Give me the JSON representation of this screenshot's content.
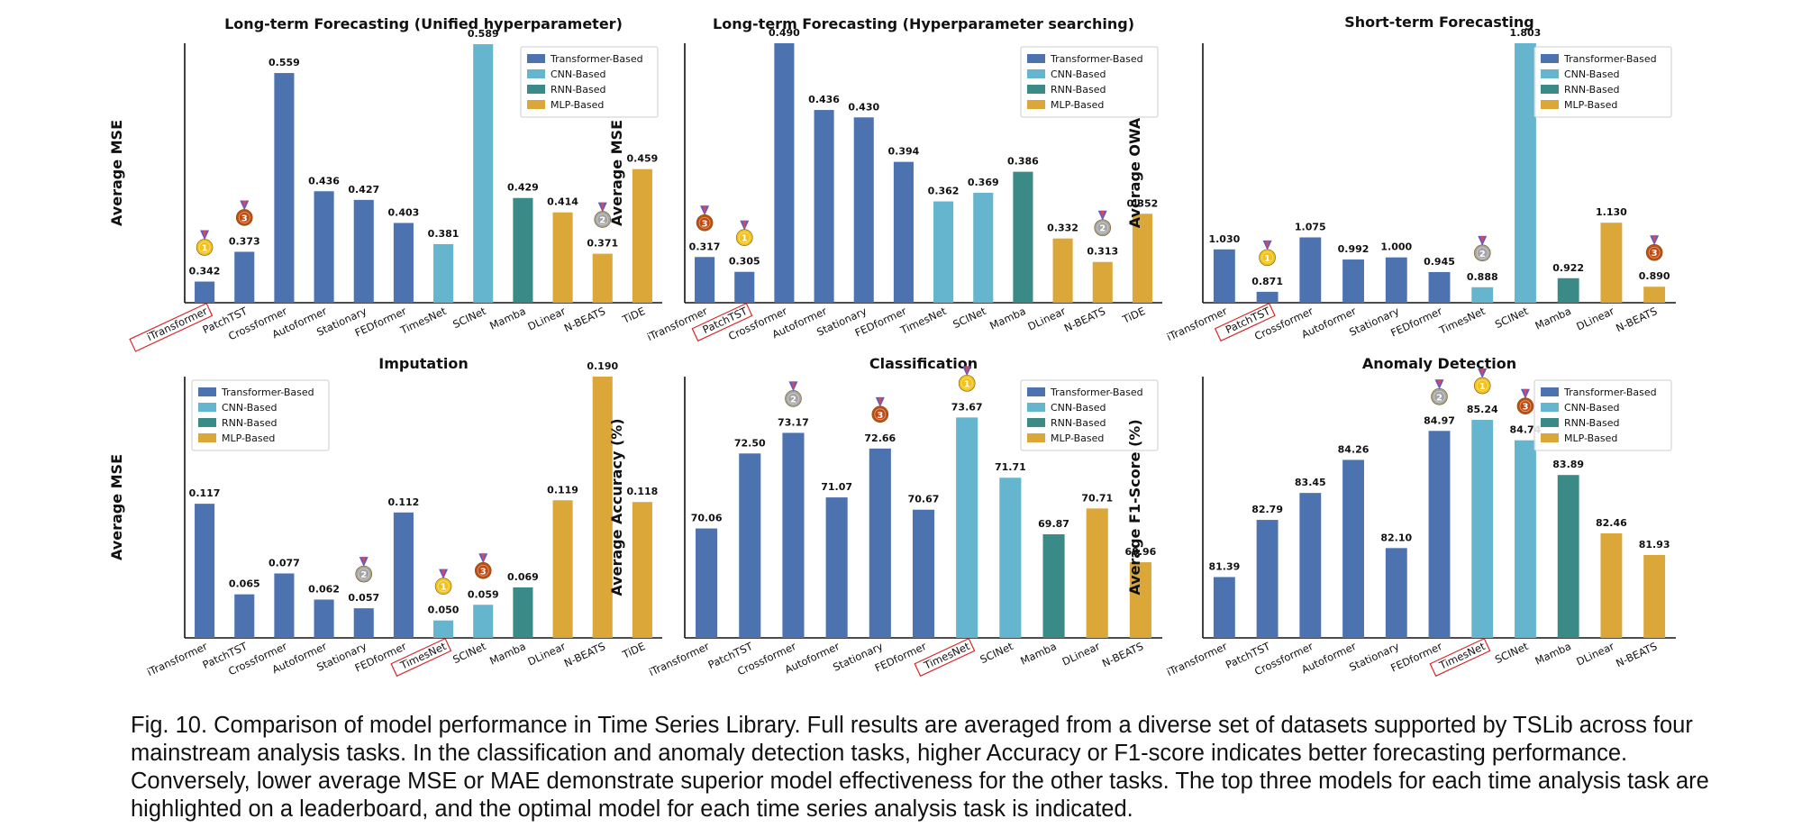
{
  "caption": "Fig. 10. Comparison of model performance in Time Series Library. Full results are averaged from a diverse set of datasets supported by TSLib across four mainstream analysis tasks. In the classification and anomaly detection tasks, higher Accuracy or F1-score indicates better forecasting performance. Conversely, lower average MSE or MAE demonstrate superior model effectiveness for the other tasks. The top three models for each time analysis task are highlighted on a leaderboard, and the optimal model for each time series analysis task is indicated.",
  "colors": {
    "Transformer-Based": "#4c72b0",
    "CNN-Based": "#64b5cd",
    "RNN-Based": "#3a8b88",
    "MLP-Based": "#daa738",
    "gold": "#f3c21a",
    "silver": "#a4a4a4",
    "bronze": "#c04b12",
    "highlight_box": "#d62728"
  },
  "chart_data": [
    {
      "type": "bar",
      "title": "Long-term Forecasting (Unified hyperparameter)",
      "ylabel": "Average MSE",
      "ylim": [
        0.32,
        0.59
      ],
      "legend_position": "top-right",
      "legend": [
        "Transformer-Based",
        "CNN-Based",
        "RNN-Based",
        "MLP-Based"
      ],
      "categories": [
        "iTransformer",
        "PatchTST",
        "Crossformer",
        "Autoformer",
        "Stationary",
        "FEDformer",
        "TimesNet",
        "SCINet",
        "Mamba",
        "DLinear",
        "N-BEATS",
        "TiDE"
      ],
      "values": [
        0.342,
        0.373,
        0.559,
        0.436,
        0.427,
        0.403,
        0.381,
        0.589,
        0.429,
        0.414,
        0.371,
        0.459
      ],
      "value_labels": [
        "0.342",
        "0.373",
        "0.559",
        "0.436",
        "0.427",
        "0.403",
        "0.381",
        "0.589",
        "0.429",
        "0.414",
        "0.371",
        "0.459"
      ],
      "groups": [
        "Transformer-Based",
        "Transformer-Based",
        "Transformer-Based",
        "Transformer-Based",
        "Transformer-Based",
        "Transformer-Based",
        "CNN-Based",
        "CNN-Based",
        "RNN-Based",
        "MLP-Based",
        "MLP-Based",
        "MLP-Based"
      ],
      "medals": [
        {
          "index": 0,
          "rank": "1"
        },
        {
          "index": 10,
          "rank": "2"
        },
        {
          "index": 1,
          "rank": "3"
        }
      ],
      "highlighted": "iTransformer"
    },
    {
      "type": "bar",
      "title": "Long-term Forecasting (Hyperparameter searching)",
      "ylabel": "Average MSE",
      "ylim": [
        0.28,
        0.49
      ],
      "legend_position": "top-right",
      "legend": [
        "Transformer-Based",
        "CNN-Based",
        "RNN-Based",
        "MLP-Based"
      ],
      "categories": [
        "iTransformer",
        "PatchTST",
        "Crossformer",
        "Autoformer",
        "Stationary",
        "FEDformer",
        "TimesNet",
        "SCINet",
        "Mamba",
        "DLinear",
        "N-BEATS",
        "TiDE"
      ],
      "values": [
        0.317,
        0.305,
        0.49,
        0.436,
        0.43,
        0.394,
        0.362,
        0.369,
        0.386,
        0.332,
        0.313,
        0.352
      ],
      "value_labels": [
        "0.317",
        "0.305",
        "0.490",
        "0.436",
        "0.430",
        "0.394",
        "0.362",
        "0.369",
        "0.386",
        "0.332",
        "0.313",
        "0.352"
      ],
      "groups": [
        "Transformer-Based",
        "Transformer-Based",
        "Transformer-Based",
        "Transformer-Based",
        "Transformer-Based",
        "Transformer-Based",
        "CNN-Based",
        "CNN-Based",
        "RNN-Based",
        "MLP-Based",
        "MLP-Based",
        "MLP-Based"
      ],
      "medals": [
        {
          "index": 1,
          "rank": "1"
        },
        {
          "index": 10,
          "rank": "2"
        },
        {
          "index": 0,
          "rank": "3"
        }
      ],
      "highlighted": "PatchTST"
    },
    {
      "type": "bar",
      "title": "Short-term Forecasting",
      "ylabel": "Average OWA",
      "ylim": [
        0.83,
        1.803
      ],
      "legend_position": "top-right",
      "legend": [
        "Transformer-Based",
        "CNN-Based",
        "RNN-Based",
        "MLP-Based"
      ],
      "categories": [
        "iTransformer",
        "PatchTST",
        "Crossformer",
        "Autoformer",
        "Stationary",
        "FEDformer",
        "TimesNet",
        "SCINet",
        "Mamba",
        "DLinear",
        "N-BEATS"
      ],
      "values": [
        1.03,
        0.871,
        1.075,
        0.992,
        1.0,
        0.945,
        0.888,
        1.803,
        0.922,
        1.13,
        0.89
      ],
      "value_labels": [
        "1.030",
        "0.871",
        "1.075",
        "0.992",
        "1.000",
        "0.945",
        "0.888",
        "1.803",
        "0.922",
        "1.130",
        "0.890"
      ],
      "groups": [
        "Transformer-Based",
        "Transformer-Based",
        "Transformer-Based",
        "Transformer-Based",
        "Transformer-Based",
        "Transformer-Based",
        "CNN-Based",
        "CNN-Based",
        "RNN-Based",
        "MLP-Based",
        "MLP-Based"
      ],
      "medals": [
        {
          "index": 1,
          "rank": "1"
        },
        {
          "index": 6,
          "rank": "2"
        },
        {
          "index": 10,
          "rank": "3"
        }
      ],
      "highlighted": "PatchTST"
    },
    {
      "type": "bar",
      "title": "Imputation",
      "ylabel": "Average MSE",
      "ylim": [
        0.04,
        0.19
      ],
      "legend_position": "top-left",
      "legend": [
        "Transformer-Based",
        "CNN-Based",
        "RNN-Based",
        "MLP-Based"
      ],
      "categories": [
        "iTransformer",
        "PatchTST",
        "Crossformer",
        "Autoformer",
        "Stationary",
        "FEDformer",
        "TimesNet",
        "SCINet",
        "Mamba",
        "DLinear",
        "N-BEATS",
        "TiDE"
      ],
      "values": [
        0.117,
        0.065,
        0.077,
        0.062,
        0.057,
        0.112,
        0.05,
        0.059,
        0.069,
        0.119,
        0.19,
        0.118
      ],
      "value_labels": [
        "0.117",
        "0.065",
        "0.077",
        "0.062",
        "0.057",
        "0.112",
        "0.050",
        "0.059",
        "0.069",
        "0.119",
        "0.190",
        "0.118"
      ],
      "groups": [
        "Transformer-Based",
        "Transformer-Based",
        "Transformer-Based",
        "Transformer-Based",
        "Transformer-Based",
        "Transformer-Based",
        "CNN-Based",
        "CNN-Based",
        "RNN-Based",
        "MLP-Based",
        "MLP-Based",
        "MLP-Based"
      ],
      "medals": [
        {
          "index": 6,
          "rank": "1"
        },
        {
          "index": 4,
          "rank": "2"
        },
        {
          "index": 7,
          "rank": "3"
        }
      ],
      "highlighted": "TimesNet"
    },
    {
      "type": "bar",
      "title": "Classification",
      "ylabel": "Average Accuracy (%)",
      "ylim": [
        66.5,
        75.0
      ],
      "legend_position": "top-right",
      "legend": [
        "Transformer-Based",
        "CNN-Based",
        "RNN-Based",
        "MLP-Based"
      ],
      "categories": [
        "iTransformer",
        "PatchTST",
        "Crossformer",
        "Autoformer",
        "Stationary",
        "FEDformer",
        "TimesNet",
        "SCINet",
        "Mamba",
        "DLinear",
        "N-BEATS"
      ],
      "values": [
        70.06,
        72.5,
        73.17,
        71.07,
        72.66,
        70.67,
        73.67,
        71.71,
        69.87,
        70.71,
        68.96
      ],
      "value_labels": [
        "70.06",
        "72.50",
        "73.17",
        "71.07",
        "72.66",
        "70.67",
        "73.67",
        "71.71",
        "69.87",
        "70.71",
        "68.96"
      ],
      "groups": [
        "Transformer-Based",
        "Transformer-Based",
        "Transformer-Based",
        "Transformer-Based",
        "Transformer-Based",
        "Transformer-Based",
        "CNN-Based",
        "CNN-Based",
        "RNN-Based",
        "MLP-Based",
        "MLP-Based"
      ],
      "medals": [
        {
          "index": 6,
          "rank": "1"
        },
        {
          "index": 2,
          "rank": "2"
        },
        {
          "index": 4,
          "rank": "3"
        }
      ],
      "highlighted": "TimesNet"
    },
    {
      "type": "bar",
      "title": "Anomaly Detection",
      "ylabel": "Average F1-Score (%)",
      "ylim": [
        79.9,
        86.3
      ],
      "legend_position": "top-right",
      "legend": [
        "Transformer-Based",
        "CNN-Based",
        "RNN-Based",
        "MLP-Based"
      ],
      "categories": [
        "iTransformer",
        "PatchTST",
        "Crossformer",
        "Autoformer",
        "Stationary",
        "FEDformer",
        "TimesNet",
        "SCINet",
        "Mamba",
        "DLinear",
        "N-BEATS"
      ],
      "values": [
        81.39,
        82.79,
        83.45,
        84.26,
        82.1,
        84.97,
        85.24,
        84.74,
        83.89,
        82.46,
        81.93
      ],
      "value_labels": [
        "81.39",
        "82.79",
        "83.45",
        "84.26",
        "82.10",
        "84.97",
        "85.24",
        "84.74",
        "83.89",
        "82.46",
        "81.93"
      ],
      "groups": [
        "Transformer-Based",
        "Transformer-Based",
        "Transformer-Based",
        "Transformer-Based",
        "Transformer-Based",
        "Transformer-Based",
        "CNN-Based",
        "CNN-Based",
        "RNN-Based",
        "MLP-Based",
        "MLP-Based"
      ],
      "medals": [
        {
          "index": 6,
          "rank": "1"
        },
        {
          "index": 5,
          "rank": "2"
        },
        {
          "index": 7,
          "rank": "3"
        }
      ],
      "highlighted": "TimesNet"
    }
  ]
}
